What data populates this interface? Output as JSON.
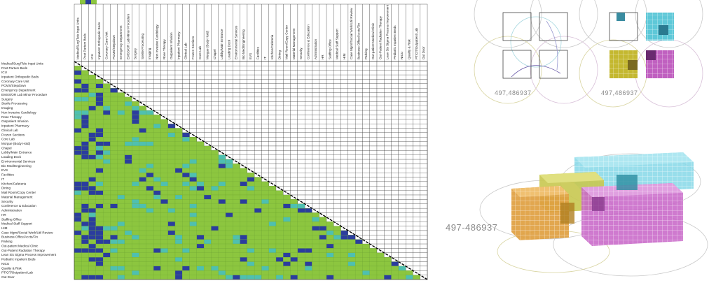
{
  "matrix": {
    "labels": [
      "Medical/Surg/Tele Inpat Units",
      "Post Partum Beds",
      "ICU",
      "Inpatient Orthopedic Beds",
      "Coronary Care Unit",
      "PCMS/Stepdown",
      "Emergency Department",
      "EMSS/OR Lab Minor Procedure",
      "Surgery",
      "Sterile Processing",
      "Imaging",
      "Non Invasive Cardiology",
      "Rose Therapy",
      "Outpatient Infusion",
      "Inpatient Pharmacy",
      "Clinical Lab",
      "Frozen Sections",
      "Core Lab",
      "Morgue (Body Hold)",
      "Chapel",
      "Lobby/Main Entrance",
      "Loading Dock",
      "Environmental Services",
      "Bio Med/Engineering",
      "EVS",
      "Facilities",
      "IT",
      "Kitchen/Cafeteria",
      "Dining",
      "Mail Room/Copy Center",
      "Material Management",
      "Security",
      "Conference & Education",
      "Administration",
      "HR",
      "Staffing Office",
      "Medical Staff Support",
      "HIM",
      "Case Mgmt/Social Work/Util Review",
      "Business Office/Accts/Fin",
      "Parking",
      "Out-patient Medical Clinic",
      "Out-Patient Radiation Therapy",
      "Lean Six Sigma Process Improvement",
      "Pediatric Inpatient Beds",
      "NICU",
      "Quality & Risk",
      "PT/OT/Outpatient Lab",
      "Out Door"
    ]
  },
  "diagrams": {
    "lot_labels": [
      "497,486937",
      "497,486937",
      "497-486937"
    ]
  }
}
